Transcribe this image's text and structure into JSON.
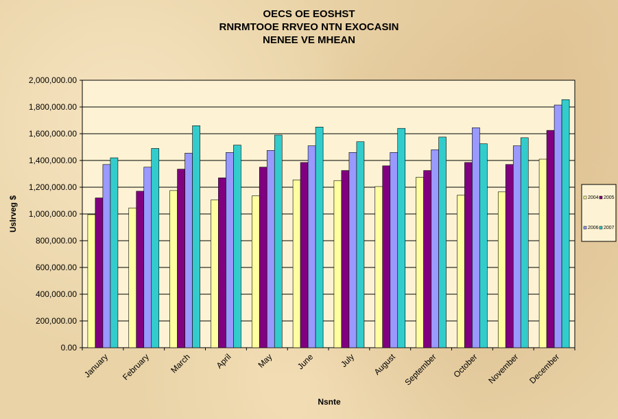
{
  "chart_data": {
    "type": "bar",
    "title_lines": [
      "OECS OE EOSHST",
      "RNRMTOOE RRVEO NTN EXOCASIN",
      "NENEE VE MHEAN"
    ],
    "xlabel": "Nsnte",
    "ylabel": "Uslrveg $",
    "ylim": [
      0,
      2000000
    ],
    "yticks": [
      0,
      200000,
      400000,
      600000,
      800000,
      1000000,
      1200000,
      1400000,
      1600000,
      1800000,
      2000000
    ],
    "ytick_labels": [
      "0.00",
      "200,000.00",
      "400,000.00",
      "600,000.00",
      "800,000.00",
      "1,000,000.00",
      "1,200,000.00",
      "1,400,000.00",
      "1,600,000.00",
      "1,800,000.00",
      "2,000,000.00"
    ],
    "grid": true,
    "legend_position": "right",
    "categories": [
      "January",
      "February",
      "March",
      "April",
      "May",
      "June",
      "July",
      "August",
      "September",
      "October",
      "November",
      "December"
    ],
    "series": [
      {
        "name": "2004",
        "color": "#ffffa0",
        "values": [
          995000,
          1045000,
          1175000,
          1105000,
          1135000,
          1255000,
          1250000,
          1205000,
          1275000,
          1140000,
          1165000,
          1410000
        ]
      },
      {
        "name": "2005",
        "color": "#800080",
        "values": [
          1120000,
          1170000,
          1335000,
          1270000,
          1350000,
          1385000,
          1325000,
          1360000,
          1325000,
          1385000,
          1370000,
          1625000
        ]
      },
      {
        "name": "2006",
        "color": "#9999ff",
        "values": [
          1370000,
          1350000,
          1455000,
          1460000,
          1475000,
          1510000,
          1460000,
          1460000,
          1480000,
          1645000,
          1510000,
          1815000
        ]
      },
      {
        "name": "2007",
        "color": "#33cccc",
        "values": [
          1420000,
          1490000,
          1660000,
          1515000,
          1590000,
          1650000,
          1540000,
          1640000,
          1575000,
          1525000,
          1570000,
          1855000
        ]
      }
    ]
  }
}
